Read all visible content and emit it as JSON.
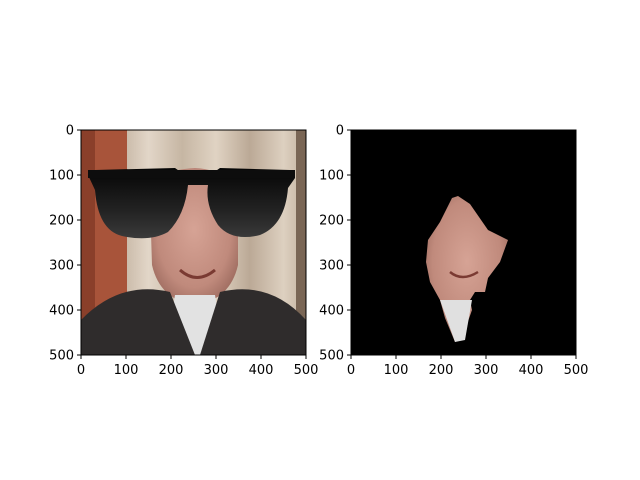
{
  "figure": {
    "background": "#ffffff",
    "panels": [
      {
        "name": "left",
        "content": "photo-with-sunglasses-overlay",
        "x_ticks": [
          "0",
          "100",
          "200",
          "300",
          "400",
          "500"
        ],
        "y_ticks": [
          "0",
          "100",
          "200",
          "300",
          "400",
          "500"
        ],
        "axis_range": [
          0,
          500
        ]
      },
      {
        "name": "right",
        "content": "face-mask-on-black",
        "x_ticks": [
          "0",
          "100",
          "200",
          "300",
          "400",
          "500"
        ],
        "y_ticks": [
          "0",
          "100",
          "200",
          "300",
          "400",
          "500"
        ],
        "axis_range": [
          0,
          500
        ]
      }
    ],
    "colors": {
      "curtain": "#cdbfae",
      "wall_left": "#a8543a",
      "suit": "#2f2c2c",
      "skin": "#c9958a",
      "sunglasses": "#141414",
      "mask_background": "#000000"
    }
  }
}
